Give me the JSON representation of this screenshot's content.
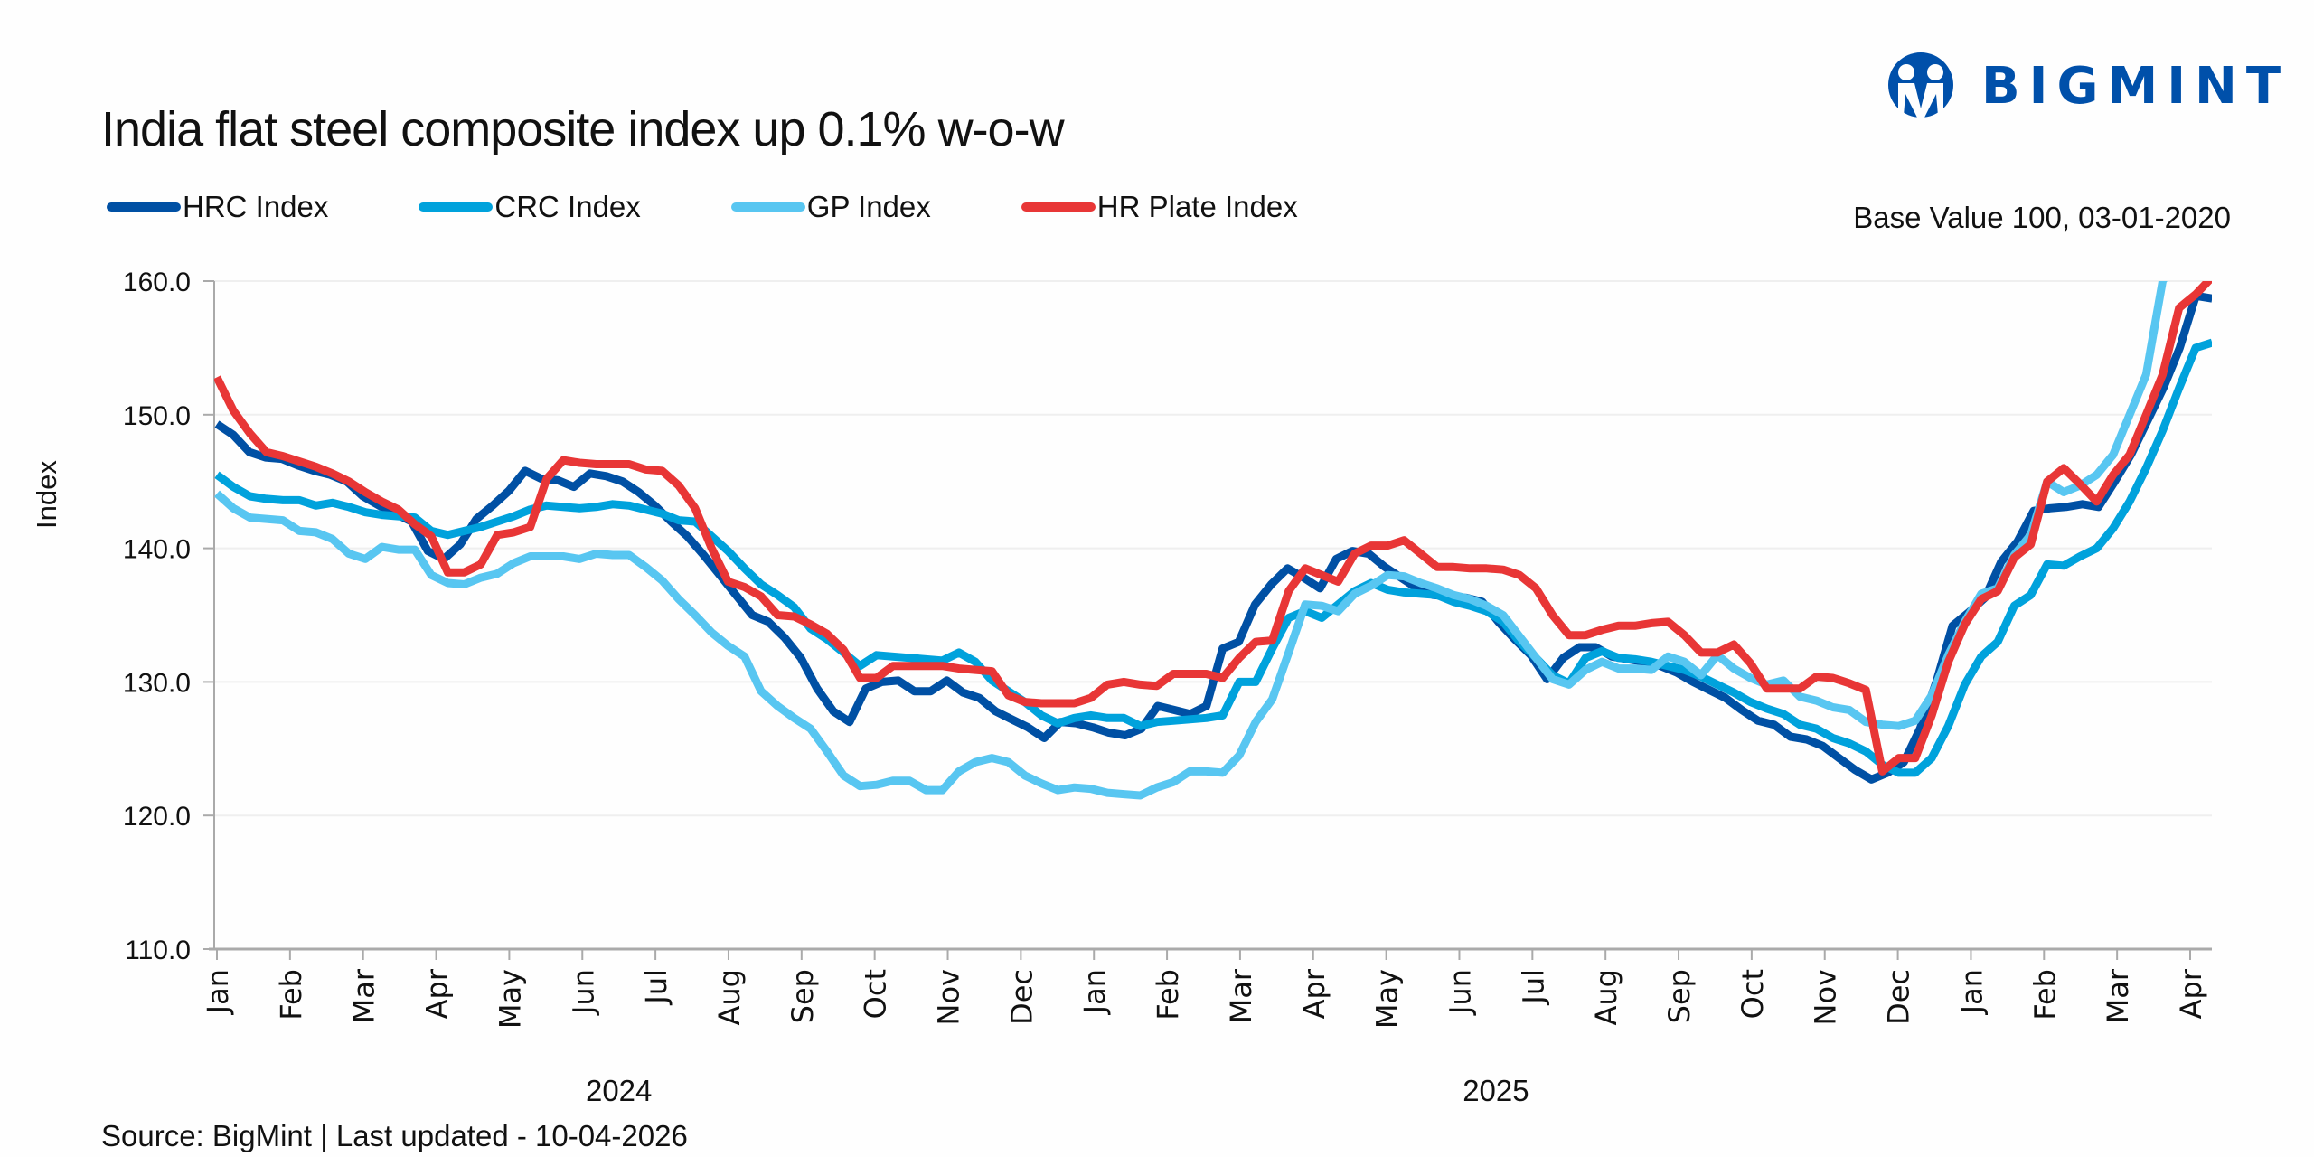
{
  "header": {
    "title": "India flat steel composite index up 0.1% w-o-w",
    "base_note": "Base Value 100, 03-01-2020",
    "logo_text": "BIGMINT"
  },
  "footer": {
    "source": "Source: BigMint | Last updated - 10-04-2026"
  },
  "colors": {
    "hrc": "#0050a4",
    "crc": "#00a2dc",
    "gp": "#58c6f1",
    "plate": "#e83636",
    "brand": "#0050aa"
  },
  "chart_data": {
    "type": "line",
    "title": "India flat steel composite index up 0.1% w-o-w",
    "xlabel": "",
    "ylabel": "Index",
    "ylim": [
      110,
      160
    ],
    "yticks": [
      "110.0",
      "120.0",
      "130.0",
      "140.0",
      "150.0",
      "160.0"
    ],
    "ytick_values": [
      110,
      120,
      130,
      140,
      150,
      160
    ],
    "grid": true,
    "legend_position": "top-left",
    "x_unit": "months since Jan 2024 (weekly points, evenly spaced)",
    "x_range_months": [
      0,
      27.3
    ],
    "month_ticks": [
      "Jan",
      "Feb",
      "Mar",
      "Apr",
      "May",
      "Jun",
      "Jul",
      "Aug",
      "Sep",
      "Oct",
      "Nov",
      "Dec",
      "Jan",
      "Feb",
      "Mar",
      "Apr",
      "May",
      "Jun",
      "Jul",
      "Aug",
      "Sep",
      "Oct",
      "Nov",
      "Dec",
      "Jan",
      "Feb",
      "Mar",
      "Apr"
    ],
    "year_groups": [
      {
        "label": "2024",
        "start_month": 0,
        "end_month": 11
      },
      {
        "label": "2025",
        "start_month": 12,
        "end_month": 23
      }
    ],
    "series": [
      {
        "name": "HRC Index",
        "color_key": "hrc",
        "values": [
          149.3,
          148.5,
          147.2,
          146.8,
          146.7,
          146.2,
          145.8,
          145.5,
          145.0,
          143.9,
          143.2,
          142.6,
          142.0,
          139.8,
          139.2,
          140.3,
          142.2,
          143.2,
          144.3,
          145.8,
          145.2,
          145.1,
          144.6,
          145.6,
          145.4,
          145.0,
          144.2,
          143.2,
          142.0,
          140.9,
          139.5,
          138.0,
          136.5,
          135.0,
          134.5,
          133.3,
          131.8,
          129.5,
          127.8,
          127.0,
          129.5,
          130.0,
          130.1,
          129.3,
          129.3,
          130.1,
          129.2,
          128.8,
          127.8,
          127.2,
          126.6,
          125.8,
          127.0,
          126.9,
          126.6,
          126.2,
          126.0,
          126.5,
          128.2,
          127.9,
          127.6,
          128.2,
          132.5,
          133.0,
          135.8,
          137.3,
          138.5,
          137.8,
          137.0,
          139.2,
          139.8,
          139.6,
          138.6,
          137.8,
          137.0,
          136.5,
          136.4,
          136.3,
          136.0,
          134.5,
          133.2,
          132.0,
          130.2,
          131.8,
          132.6,
          132.6,
          131.9,
          131.7,
          131.5,
          131.2,
          130.7,
          130.0,
          129.4,
          128.8,
          127.9,
          127.1,
          126.8,
          125.9,
          125.7,
          125.2,
          124.3,
          123.4,
          122.7,
          123.2,
          124.0,
          126.5,
          130.0,
          134.2,
          135.2,
          136.3,
          139.0,
          140.5,
          142.8,
          143.0,
          143.1,
          143.3,
          143.1,
          145.0,
          147.0,
          149.5,
          152.0,
          155.0,
          158.9,
          158.7
        ]
      },
      {
        "name": "CRC Index",
        "color_key": "crc",
        "values": [
          145.5,
          144.6,
          143.9,
          143.7,
          143.6,
          143.6,
          143.2,
          143.4,
          143.1,
          142.7,
          142.5,
          142.4,
          142.3,
          141.3,
          141.0,
          141.3,
          141.6,
          142.0,
          142.4,
          142.9,
          143.2,
          143.1,
          143.0,
          143.1,
          143.3,
          143.2,
          142.9,
          142.6,
          142.1,
          142.0,
          140.9,
          139.8,
          138.5,
          137.3,
          136.5,
          135.6,
          134.0,
          133.2,
          132.2,
          131.2,
          132.0,
          131.9,
          131.8,
          131.7,
          131.6,
          132.2,
          131.5,
          130.1,
          129.3,
          128.5,
          127.5,
          126.9,
          127.3,
          127.5,
          127.3,
          127.3,
          126.7,
          127.0,
          127.1,
          127.2,
          127.3,
          127.5,
          130.0,
          130.0,
          132.5,
          134.8,
          135.3,
          134.8,
          135.8,
          136.8,
          137.4,
          136.9,
          136.7,
          136.6,
          136.5,
          136.0,
          135.7,
          135.3,
          134.5,
          133.0,
          131.8,
          130.5,
          129.9,
          131.8,
          132.3,
          131.8,
          131.7,
          131.5,
          131.2,
          130.9,
          130.4,
          129.8,
          129.2,
          128.5,
          128.0,
          127.6,
          126.8,
          126.5,
          125.8,
          125.4,
          124.8,
          123.8,
          123.2,
          123.2,
          124.3,
          126.7,
          129.8,
          131.9,
          133.0,
          135.7,
          136.5,
          138.8,
          138.7,
          139.4,
          140.0,
          141.5,
          143.5,
          146.0,
          148.8,
          152.0,
          155.0,
          155.4
        ]
      },
      {
        "name": "GP Index",
        "color_key": "gp",
        "values": [
          144.1,
          143.0,
          142.3,
          142.2,
          142.1,
          141.3,
          141.2,
          140.7,
          139.6,
          139.2,
          140.1,
          139.9,
          139.9,
          138.0,
          137.4,
          137.3,
          137.8,
          138.1,
          138.9,
          139.4,
          139.4,
          139.4,
          139.2,
          139.6,
          139.5,
          139.5,
          138.6,
          137.6,
          136.2,
          135.0,
          133.7,
          132.7,
          131.9,
          129.3,
          128.2,
          127.3,
          126.5,
          124.8,
          123.0,
          122.2,
          122.3,
          122.6,
          122.6,
          121.9,
          121.9,
          123.3,
          124.0,
          124.3,
          124.0,
          123.0,
          122.4,
          121.9,
          122.1,
          122.0,
          121.7,
          121.6,
          121.5,
          122.1,
          122.5,
          123.3,
          123.3,
          123.2,
          124.5,
          127.0,
          128.7,
          132.2,
          135.8,
          135.7,
          135.3,
          136.6,
          137.2,
          138.0,
          137.9,
          137.4,
          137.0,
          136.5,
          136.2,
          135.7,
          135.0,
          133.4,
          131.8,
          130.2,
          129.8,
          130.9,
          131.5,
          131.0,
          131.0,
          130.9,
          131.9,
          131.5,
          130.5,
          132.0,
          131.0,
          130.3,
          129.8,
          130.1,
          128.9,
          128.6,
          128.1,
          127.9,
          127.0,
          126.8,
          126.7,
          127.1,
          129.0,
          132.0,
          134.5,
          136.6,
          137.0,
          139.5,
          141.0,
          145.0,
          144.2,
          144.7,
          145.5,
          147.0,
          150.0,
          153.0,
          160.0,
          162.0,
          163.0,
          163.5
        ]
      },
      {
        "name": "HR Plate Index",
        "color_key": "plate",
        "values": [
          152.8,
          150.3,
          148.6,
          147.2,
          146.9,
          146.5,
          146.1,
          145.6,
          145.0,
          144.2,
          143.5,
          142.9,
          141.8,
          140.9,
          138.2,
          138.2,
          138.8,
          141.0,
          141.2,
          141.6,
          145.2,
          146.6,
          146.4,
          146.3,
          146.3,
          146.3,
          145.9,
          145.8,
          144.7,
          143.0,
          140.0,
          137.5,
          137.1,
          136.4,
          135.0,
          134.9,
          134.3,
          133.6,
          132.4,
          130.3,
          130.3,
          131.2,
          131.2,
          131.2,
          131.2,
          131.0,
          130.9,
          130.8,
          129.0,
          128.5,
          128.4,
          128.4,
          128.4,
          128.8,
          129.8,
          130.0,
          129.8,
          129.7,
          130.6,
          130.6,
          130.6,
          130.3,
          131.8,
          133.0,
          133.1,
          136.8,
          138.5,
          138.0,
          137.5,
          139.6,
          140.2,
          140.2,
          140.6,
          139.6,
          138.6,
          138.6,
          138.5,
          138.5,
          138.4,
          138.0,
          137.0,
          135.0,
          133.5,
          133.5,
          133.9,
          134.2,
          134.2,
          134.4,
          134.5,
          133.5,
          132.2,
          132.2,
          132.8,
          131.4,
          129.5,
          129.5,
          129.5,
          130.4,
          130.3,
          129.9,
          129.4,
          123.3,
          124.3,
          124.3,
          127.5,
          131.5,
          134.3,
          136.2,
          136.8,
          139.3,
          140.3,
          145.0,
          146.0,
          144.8,
          143.5,
          145.5,
          147.0,
          150.0,
          153.0,
          158.0,
          159.0,
          160.3
        ]
      }
    ]
  }
}
